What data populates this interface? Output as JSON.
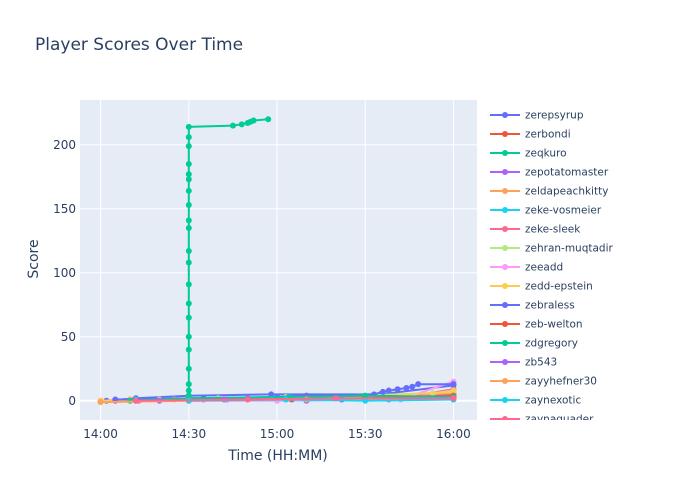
{
  "chart_data": {
    "type": "line",
    "title": "Player Scores Over Time",
    "xlabel": "Time (HH:MM)",
    "ylabel": "Score",
    "x_ticks": [
      "14:00",
      "14:30",
      "15:00",
      "15:30",
      "16:00"
    ],
    "y_ticks": [
      0,
      50,
      100,
      150,
      200
    ],
    "xlim": [
      "13:53",
      "16:08"
    ],
    "ylim": [
      -15,
      235
    ],
    "grid": true,
    "legend_position": "right",
    "series": [
      {
        "name": "zerepsyrup",
        "color": "#636efa",
        "points": [
          [
            "14:02",
            0
          ],
          [
            "14:12",
            2
          ],
          [
            "14:30",
            4
          ],
          [
            "14:58",
            5
          ],
          [
            "15:35",
            5
          ],
          [
            "16:00",
            12
          ]
        ]
      },
      {
        "name": "zerbondi",
        "color": "#EF553B",
        "points": [
          [
            "14:05",
            0
          ],
          [
            "14:20",
            1
          ],
          [
            "14:40",
            2
          ],
          [
            "15:10",
            3
          ],
          [
            "15:38",
            2
          ],
          [
            "16:00",
            3
          ]
        ]
      },
      {
        "name": "zeqkuro",
        "color": "#00cc96",
        "points": [
          [
            "14:30",
            0
          ],
          [
            "14:30",
            4
          ],
          [
            "14:30",
            8
          ],
          [
            "14:30",
            13
          ],
          [
            "14:30",
            25
          ],
          [
            "14:30",
            40
          ],
          [
            "14:30",
            50
          ],
          [
            "14:30",
            65
          ],
          [
            "14:30",
            76
          ],
          [
            "14:30",
            91
          ],
          [
            "14:30",
            108
          ],
          [
            "14:30",
            117
          ],
          [
            "14:30",
            135
          ],
          [
            "14:30",
            141
          ],
          [
            "14:30",
            153
          ],
          [
            "14:30",
            164
          ],
          [
            "14:30",
            173
          ],
          [
            "14:30",
            177
          ],
          [
            "14:30",
            185
          ],
          [
            "14:30",
            199
          ],
          [
            "14:30",
            206
          ],
          [
            "14:30",
            214
          ],
          [
            "14:45",
            215
          ],
          [
            "14:48",
            216
          ],
          [
            "14:50",
            217
          ],
          [
            "14:51",
            218
          ],
          [
            "14:52",
            219
          ],
          [
            "14:57",
            220
          ]
        ]
      },
      {
        "name": "zepotatomaster",
        "color": "#ab63fa",
        "points": [
          [
            "14:43",
            1
          ],
          [
            "14:50",
            2
          ],
          [
            "15:10",
            0
          ],
          [
            "15:22",
            1
          ],
          [
            "15:28",
            3
          ],
          [
            "16:00",
            5
          ]
        ]
      },
      {
        "name": "zeldapeachkitty",
        "color": "#FFA15A",
        "points": [
          [
            "14:00",
            0
          ],
          [
            "14:10",
            1
          ],
          [
            "14:25",
            1
          ],
          [
            "15:05",
            2
          ],
          [
            "15:30",
            3
          ],
          [
            "16:00",
            6
          ]
        ]
      },
      {
        "name": "zeke-vosmeier",
        "color": "#19d3f3",
        "points": [
          [
            "14:12",
            1
          ],
          [
            "14:30",
            2
          ],
          [
            "15:00",
            2
          ],
          [
            "15:30",
            1
          ],
          [
            "16:00",
            1
          ]
        ]
      },
      {
        "name": "zeke-sleek",
        "color": "#FF6692",
        "points": [
          [
            "14:13",
            0
          ],
          [
            "14:35",
            1
          ],
          [
            "15:00",
            1
          ],
          [
            "15:38",
            1
          ],
          [
            "16:00",
            9
          ]
        ]
      },
      {
        "name": "zehran-muqtadir",
        "color": "#B6E880",
        "points": [
          [
            "14:20",
            1
          ],
          [
            "14:40",
            2
          ],
          [
            "15:03",
            3
          ],
          [
            "15:28",
            4
          ],
          [
            "15:53",
            6
          ],
          [
            "16:00",
            8
          ]
        ]
      },
      {
        "name": "zeeadd",
        "color": "#FF97FF",
        "points": [
          [
            "14:00",
            0
          ],
          [
            "15:00",
            0
          ],
          [
            "15:42",
            1
          ],
          [
            "16:00",
            15
          ]
        ]
      },
      {
        "name": "zedd-epstein",
        "color": "#FECB52",
        "points": [
          [
            "14:00",
            0
          ],
          [
            "14:30",
            1
          ],
          [
            "15:05",
            2
          ],
          [
            "15:28",
            3
          ],
          [
            "16:00",
            7
          ]
        ]
      },
      {
        "name": "zebraless",
        "color": "#636efa",
        "points": [
          [
            "14:05",
            1
          ],
          [
            "14:35",
            2
          ],
          [
            "15:00",
            3
          ],
          [
            "15:10",
            4
          ],
          [
            "15:33",
            5
          ],
          [
            "15:36",
            7
          ],
          [
            "15:38",
            8
          ],
          [
            "15:41",
            9
          ],
          [
            "15:44",
            10
          ],
          [
            "15:46",
            11
          ],
          [
            "15:48",
            13
          ],
          [
            "16:00",
            13
          ]
        ]
      },
      {
        "name": "zeb-welton",
        "color": "#EF553B",
        "points": [
          [
            "14:12",
            0
          ],
          [
            "14:30",
            1
          ],
          [
            "15:05",
            1
          ],
          [
            "15:30",
            2
          ],
          [
            "16:00",
            4
          ]
        ]
      },
      {
        "name": "zdgregory",
        "color": "#00cc96",
        "points": [
          [
            "14:10",
            0
          ],
          [
            "14:30",
            2
          ],
          [
            "15:04",
            3
          ],
          [
            "15:30",
            4
          ],
          [
            "16:00",
            3
          ]
        ]
      },
      {
        "name": "zb543",
        "color": "#ab63fa",
        "points": [
          [
            "14:20",
            0
          ],
          [
            "14:42",
            1
          ],
          [
            "15:22",
            1
          ],
          [
            "16:00",
            2
          ]
        ]
      },
      {
        "name": "zayyhefner30",
        "color": "#FFA15A",
        "points": [
          [
            "14:00",
            -1
          ],
          [
            "14:30",
            0
          ],
          [
            "15:10",
            1
          ],
          [
            "16:00",
            1
          ]
        ]
      },
      {
        "name": "zaynexotic",
        "color": "#19d3f3",
        "points": [
          [
            "14:30",
            0
          ],
          [
            "15:03",
            1
          ],
          [
            "15:30",
            0
          ],
          [
            "16:00",
            1
          ]
        ]
      },
      {
        "name": "zaynaguader",
        "color": "#FF6692",
        "points": [
          [
            "14:12",
            0
          ],
          [
            "14:50",
            1
          ],
          [
            "15:20",
            2
          ],
          [
            "16:00",
            2
          ]
        ]
      }
    ]
  }
}
